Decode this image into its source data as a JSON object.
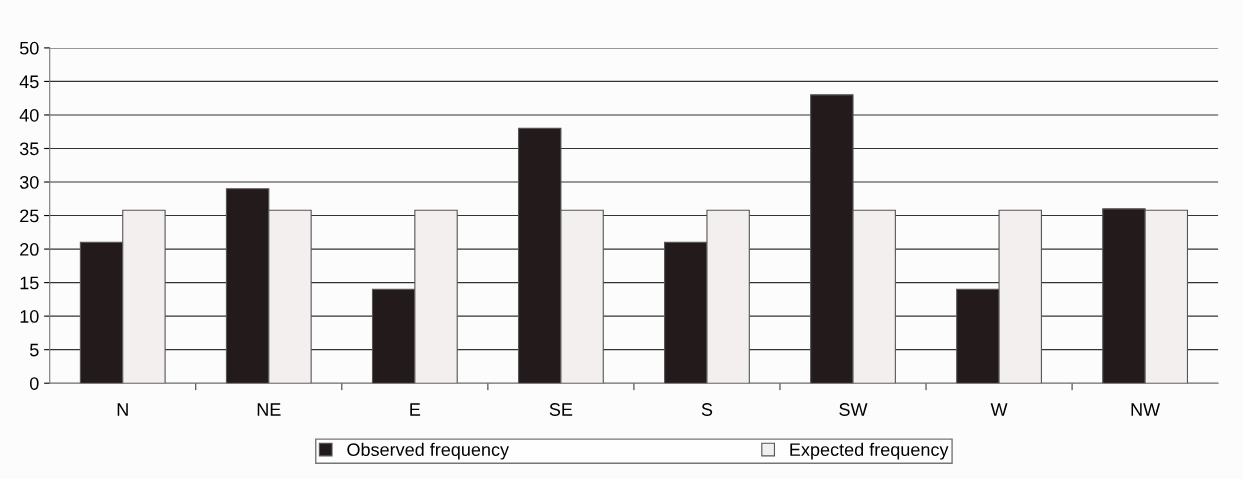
{
  "chart_data": {
    "type": "bar",
    "categories": [
      "N",
      "NE",
      "E",
      "SE",
      "S",
      "SW",
      "W",
      "NW"
    ],
    "series": [
      {
        "name": "Observed frequency",
        "color": "#231a1c",
        "values": [
          21,
          29,
          14,
          38,
          21,
          43,
          14,
          26
        ]
      },
      {
        "name": "Expected frequency",
        "color": "#f3efef",
        "values": [
          25.8,
          25.8,
          25.8,
          25.8,
          25.8,
          25.8,
          25.8,
          25.8
        ]
      }
    ],
    "ylim": [
      0,
      50
    ],
    "yticks": [
      0,
      5,
      10,
      15,
      20,
      25,
      30,
      35,
      40,
      45,
      50
    ],
    "grid": "y",
    "legend": "bottom"
  }
}
